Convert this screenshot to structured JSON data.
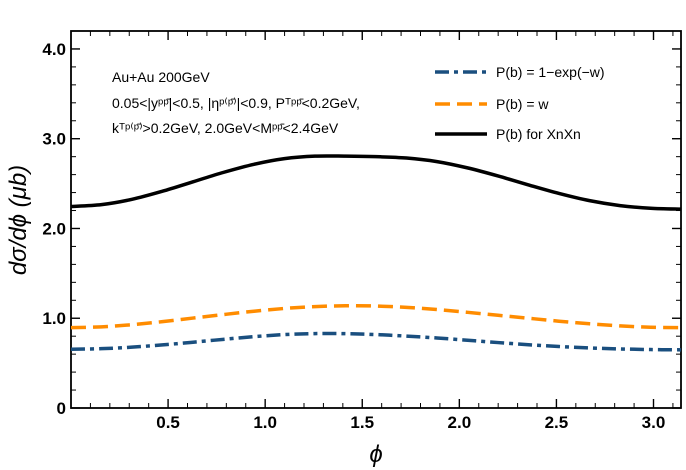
{
  "chart_data": {
    "type": "line",
    "xlabel": "ϕ",
    "ylabel": "dσ/dϕ (μb)",
    "xlim": [
      0,
      3.1416
    ],
    "ylim": [
      0,
      4.2
    ],
    "xticks": [
      0.5,
      1.0,
      1.5,
      2.0,
      2.5,
      3.0
    ],
    "xtick_labels": [
      "0.5",
      "1.0",
      "1.5",
      "2.0",
      "2.5",
      "3.0"
    ],
    "yticks": [
      0,
      1,
      2,
      3,
      4
    ],
    "ytick_labels": [
      "0",
      "1.0",
      "2.0",
      "3.0",
      "4.0"
    ],
    "grid": false,
    "legend_position": "top-right",
    "annotations": [
      "Au+Au 200GeV",
      "0.05<|yᵖᵖ̄|<0.5, |ηᵖ⁽ᵖ̄⁾|<0.9, Pᵀᵖᵖ̄<0.2GeV,",
      "kᵀᵖ⁽ᵖ̄⁾>0.2GeV, 2.0GeV<Mᵖᵖ̄<2.4GeV"
    ],
    "x": [
      0.0,
      0.1571,
      0.3142,
      0.4712,
      0.6283,
      0.7854,
      0.9425,
      1.0996,
      1.2566,
      1.4137,
      1.5708,
      1.7279,
      1.885,
      2.042,
      2.1991,
      2.3562,
      2.5133,
      2.6704,
      2.8274,
      2.9845,
      3.1416
    ],
    "series": [
      {
        "name": "P(b) = 1−exp(−w)",
        "color": "#1a4f7f",
        "dash": "dashdot",
        "values": [
          0.655,
          0.661,
          0.678,
          0.703,
          0.733,
          0.765,
          0.795,
          0.818,
          0.829,
          0.828,
          0.818,
          0.801,
          0.78,
          0.755,
          0.729,
          0.705,
          0.685,
          0.669,
          0.658,
          0.651,
          0.648
        ]
      },
      {
        "name": "P(b) = w",
        "color": "#ff8c00",
        "dash": "dashed",
        "values": [
          0.895,
          0.904,
          0.928,
          0.962,
          1.002,
          1.041,
          1.078,
          1.109,
          1.13,
          1.139,
          1.136,
          1.121,
          1.097,
          1.066,
          1.033,
          1.0,
          0.967,
          0.938,
          0.915,
          0.9,
          0.895
        ]
      },
      {
        "name": "P(b) for XnXn",
        "color": "#000000",
        "dash": "solid",
        "values": [
          2.245,
          2.266,
          2.325,
          2.415,
          2.52,
          2.625,
          2.715,
          2.778,
          2.806,
          2.806,
          2.8,
          2.785,
          2.745,
          2.675,
          2.585,
          2.485,
          2.39,
          2.31,
          2.255,
          2.225,
          2.215
        ]
      }
    ]
  }
}
